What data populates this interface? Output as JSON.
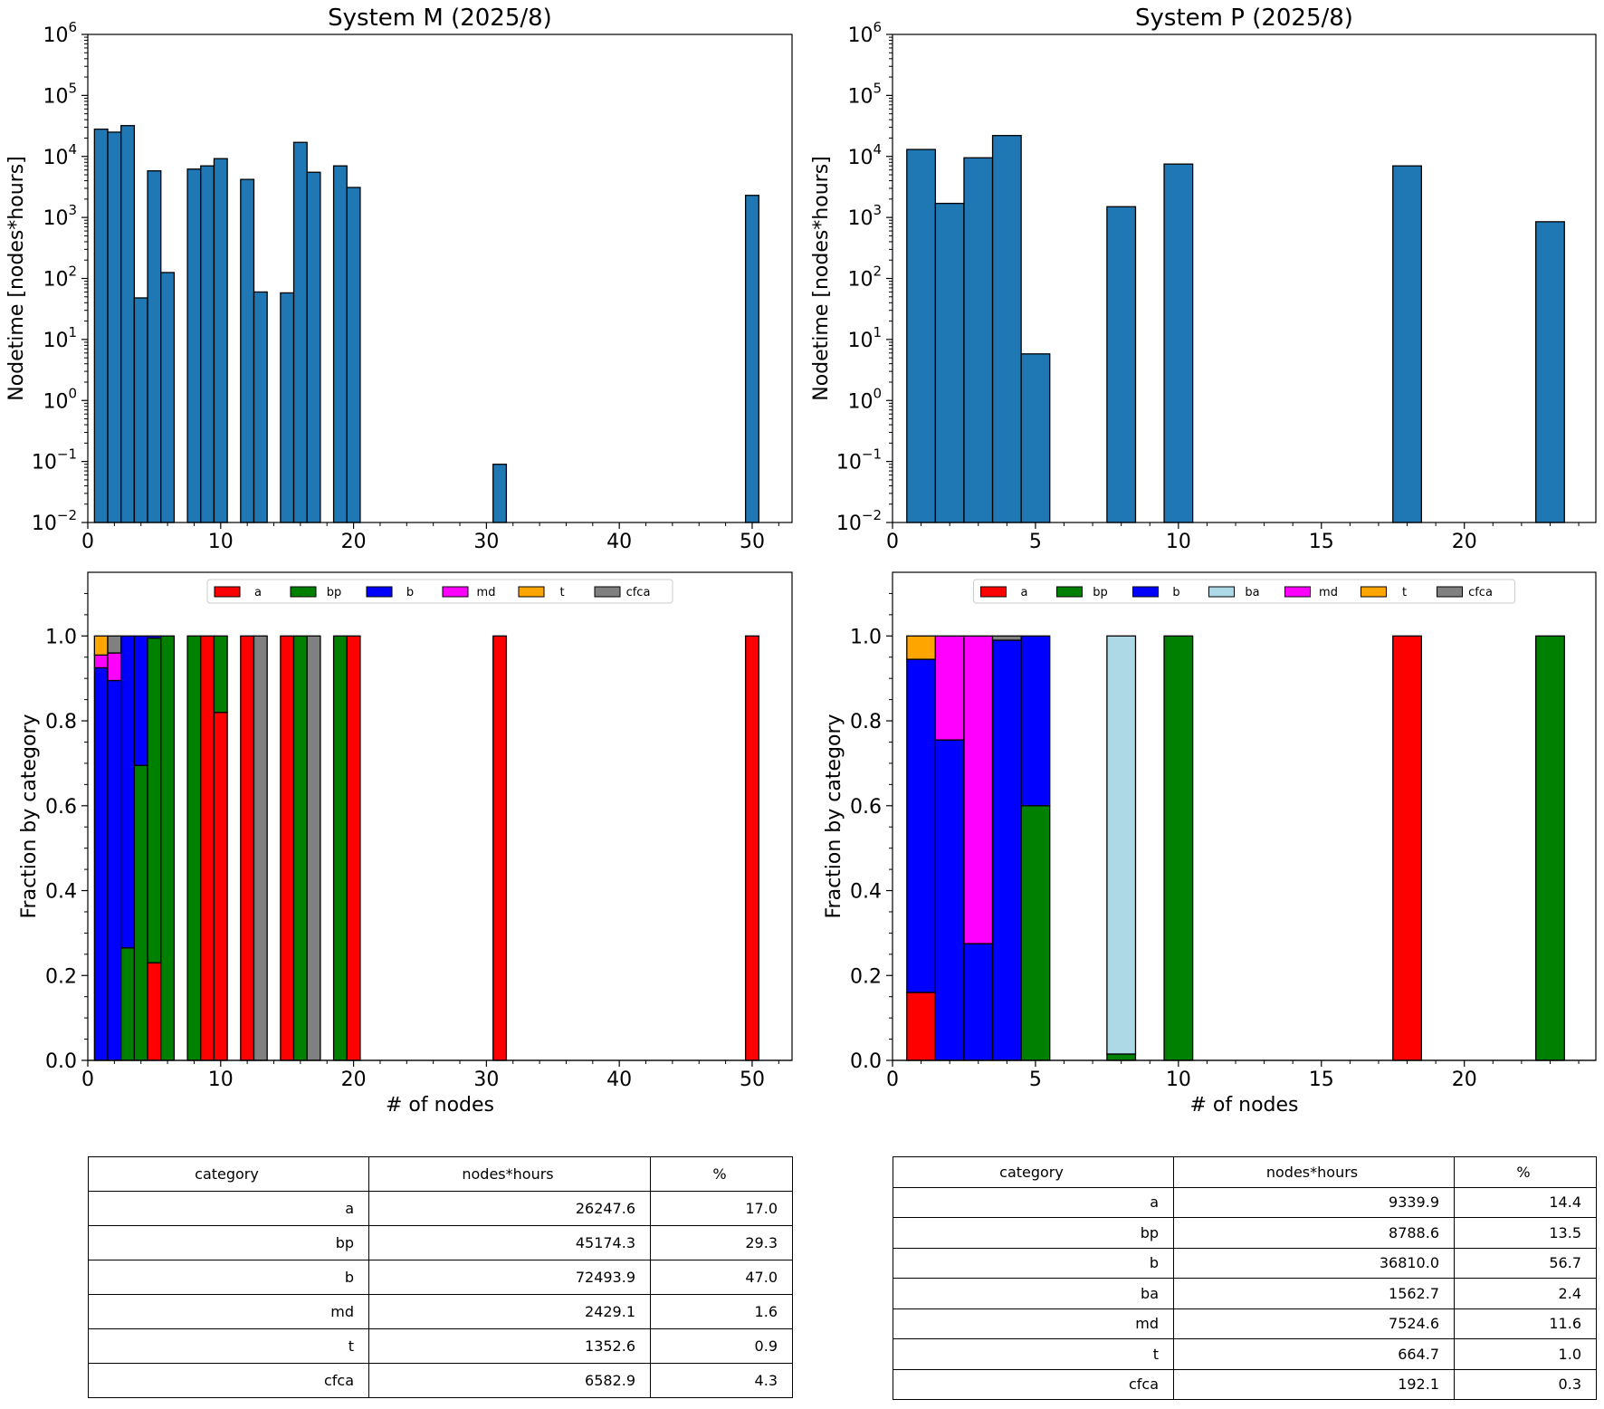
{
  "colors": {
    "bar": "#1f77b4",
    "a": "#ff0000",
    "bp": "#008000",
    "b": "#0000ff",
    "ba": "#add8e6",
    "md": "#ff00ff",
    "t": "#ffa500",
    "cfca": "#808080"
  },
  "chart_data": [
    {
      "id": "M_hist",
      "type": "bar",
      "title": "System M (2025/8)",
      "xlabel": "",
      "ylabel": "Nodetime [nodes*hours]",
      "yscale": "log",
      "xlim": [
        0,
        53
      ],
      "ylim": [
        0.01,
        1000000
      ],
      "xticks": [
        0,
        10,
        20,
        30,
        40,
        50
      ],
      "x": [
        1,
        2,
        3,
        4,
        5,
        6,
        8,
        9,
        10,
        12,
        13,
        15,
        16,
        17,
        19,
        20,
        31,
        50
      ],
      "values": [
        28000,
        25000,
        32000,
        48,
        5800,
        125,
        6200,
        7000,
        9200,
        4200,
        60,
        58,
        17000,
        5500,
        7000,
        3100,
        0.09,
        2300
      ]
    },
    {
      "id": "P_hist",
      "type": "bar",
      "title": "System P (2025/8)",
      "xlabel": "",
      "ylabel": "Nodetime [nodes*hours]",
      "yscale": "log",
      "xlim": [
        0,
        24.6
      ],
      "ylim": [
        0.01,
        1000000
      ],
      "xticks": [
        0,
        5,
        10,
        15,
        20
      ],
      "x": [
        1,
        2,
        3,
        4,
        5,
        8,
        10,
        18,
        23
      ],
      "values": [
        13000,
        1700,
        9500,
        22000,
        5.8,
        1500,
        7500,
        7000,
        850
      ]
    },
    {
      "id": "M_frac",
      "type": "bar",
      "stacked": true,
      "title": "",
      "xlabel": "# of nodes",
      "ylabel": "Fraction by category",
      "xlim": [
        0,
        53
      ],
      "ylim": [
        0,
        1.15
      ],
      "xticks": [
        0,
        10,
        20,
        30,
        40,
        50
      ],
      "yticks": [
        0.0,
        0.2,
        0.4,
        0.6,
        0.8,
        1.0
      ],
      "legend": [
        "a",
        "bp",
        "b",
        "md",
        "t",
        "cfca"
      ],
      "legend_position": "top-center",
      "x": [
        1,
        2,
        3,
        4,
        5,
        6,
        8,
        9,
        10,
        12,
        13,
        15,
        16,
        17,
        19,
        20,
        31,
        50
      ],
      "series": [
        {
          "name": "a",
          "values": [
            0,
            0,
            0,
            0,
            0.23,
            0,
            0,
            1.0,
            0.82,
            1.0,
            0,
            1.0,
            0,
            0,
            0,
            1.0,
            1.0,
            1.0
          ]
        },
        {
          "name": "bp",
          "values": [
            0,
            0,
            0.265,
            0.695,
            0.765,
            1.0,
            1.0,
            0,
            0.18,
            0,
            0,
            0,
            1.0,
            0,
            1.0,
            0,
            0,
            0
          ]
        },
        {
          "name": "b",
          "values": [
            0.925,
            0.895,
            0.735,
            0.305,
            0.005,
            0,
            0,
            0,
            0,
            0,
            0,
            0,
            0,
            0,
            0,
            0,
            0,
            0
          ]
        },
        {
          "name": "md",
          "values": [
            0.03,
            0.065,
            0,
            0,
            0,
            0,
            0,
            0,
            0,
            0,
            0,
            0,
            0,
            0,
            0,
            0,
            0,
            0
          ]
        },
        {
          "name": "t",
          "values": [
            0.045,
            0,
            0,
            0,
            0,
            0,
            0,
            0,
            0,
            0,
            0,
            0,
            0,
            0,
            0,
            0,
            0,
            0
          ]
        },
        {
          "name": "cfca",
          "values": [
            0,
            0.04,
            0,
            0,
            0,
            0,
            0,
            0,
            0,
            0,
            1.0,
            0,
            0,
            1.0,
            0,
            0,
            0,
            0
          ]
        }
      ]
    },
    {
      "id": "P_frac",
      "type": "bar",
      "stacked": true,
      "title": "",
      "xlabel": "# of nodes",
      "ylabel": "Fraction by category",
      "xlim": [
        0,
        24.6
      ],
      "ylim": [
        0,
        1.15
      ],
      "xticks": [
        0,
        5,
        10,
        15,
        20
      ],
      "yticks": [
        0.0,
        0.2,
        0.4,
        0.6,
        0.8,
        1.0
      ],
      "legend": [
        "a",
        "bp",
        "b",
        "ba",
        "md",
        "t",
        "cfca"
      ],
      "legend_position": "top-center",
      "x": [
        1,
        2,
        3,
        4,
        5,
        8,
        10,
        18,
        23
      ],
      "series": [
        {
          "name": "a",
          "values": [
            0.16,
            0,
            0,
            0,
            0,
            0,
            0,
            1.0,
            0
          ]
        },
        {
          "name": "bp",
          "values": [
            0,
            0,
            0,
            0,
            0.6,
            0.015,
            1.0,
            0,
            1.0
          ]
        },
        {
          "name": "b",
          "values": [
            0.785,
            0.755,
            0.275,
            0.99,
            0.4,
            0,
            0,
            0,
            0
          ]
        },
        {
          "name": "ba",
          "values": [
            0,
            0,
            0,
            0,
            0,
            0.985,
            0,
            0,
            0
          ]
        },
        {
          "name": "md",
          "values": [
            0,
            0.245,
            0.725,
            0,
            0,
            0,
            0,
            0,
            0
          ]
        },
        {
          "name": "t",
          "values": [
            0.055,
            0,
            0,
            0,
            0,
            0,
            0,
            0,
            0
          ]
        },
        {
          "name": "cfca",
          "values": [
            0,
            0,
            0,
            0.01,
            0,
            0,
            0,
            0,
            0
          ]
        }
      ]
    },
    {
      "id": "M_table",
      "type": "table",
      "columns": [
        "category",
        "nodes*hours",
        "%"
      ],
      "rows": [
        [
          "a",
          "26247.6",
          "17.0"
        ],
        [
          "bp",
          "45174.3",
          "29.3"
        ],
        [
          "b",
          "72493.9",
          "47.0"
        ],
        [
          "md",
          "2429.1",
          "1.6"
        ],
        [
          "t",
          "1352.6",
          "0.9"
        ],
        [
          "cfca",
          "6582.9",
          "4.3"
        ]
      ]
    },
    {
      "id": "P_table",
      "type": "table",
      "columns": [
        "category",
        "nodes*hours",
        "%"
      ],
      "rows": [
        [
          "a",
          "9339.9",
          "14.4"
        ],
        [
          "bp",
          "8788.6",
          "13.5"
        ],
        [
          "b",
          "36810.0",
          "56.7"
        ],
        [
          "ba",
          "1562.7",
          "2.4"
        ],
        [
          "md",
          "7524.6",
          "11.6"
        ],
        [
          "t",
          "664.7",
          "1.0"
        ],
        [
          "cfca",
          "192.1",
          "0.3"
        ]
      ]
    }
  ]
}
